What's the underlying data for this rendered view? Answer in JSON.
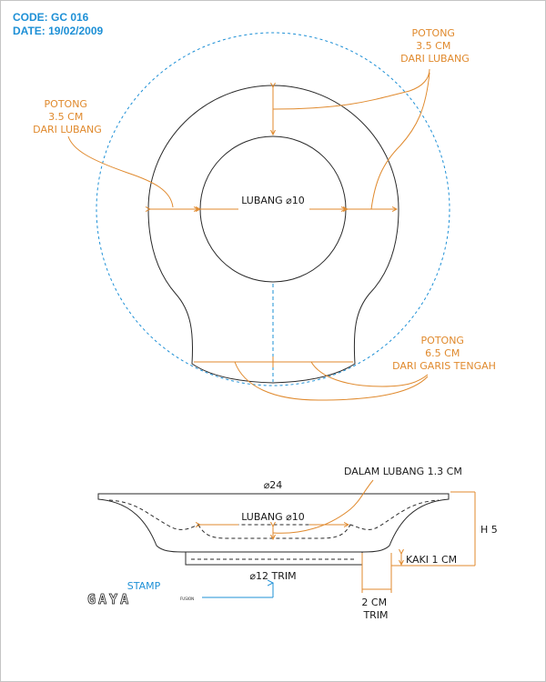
{
  "header": {
    "code": "CODE: GC 016",
    "date": "DATE: 19/02/2009"
  },
  "top_view": {
    "note_right": [
      "POTONG",
      "3.5 CM",
      "DARI LUBANG"
    ],
    "note_left": [
      "POTONG",
      "3.5 CM",
      "DARI LUBANG"
    ],
    "note_bottom": [
      "POTONG",
      "6.5 CM",
      "DARI GARIS TENGAH"
    ],
    "hole_label": "LUBANG ⌀10"
  },
  "side_view": {
    "diameter_label": "⌀24",
    "depth_note": "DALAM LUBANG 1.3 CM",
    "hole_label": "LUBANG ⌀10",
    "height_label": "H 5",
    "foot_label": "KAKI 1 CM",
    "trim_label": "⌀12 TRIM",
    "trim_width": [
      "2 CM",
      "TRIM"
    ]
  },
  "stamp": {
    "label": "STAMP",
    "brand": "GAYA",
    "brand_sub": "FUSION"
  },
  "colors": {
    "annotation": "#e08a2e",
    "guide": "#1e90d6",
    "outline": "#2a2a2a"
  }
}
